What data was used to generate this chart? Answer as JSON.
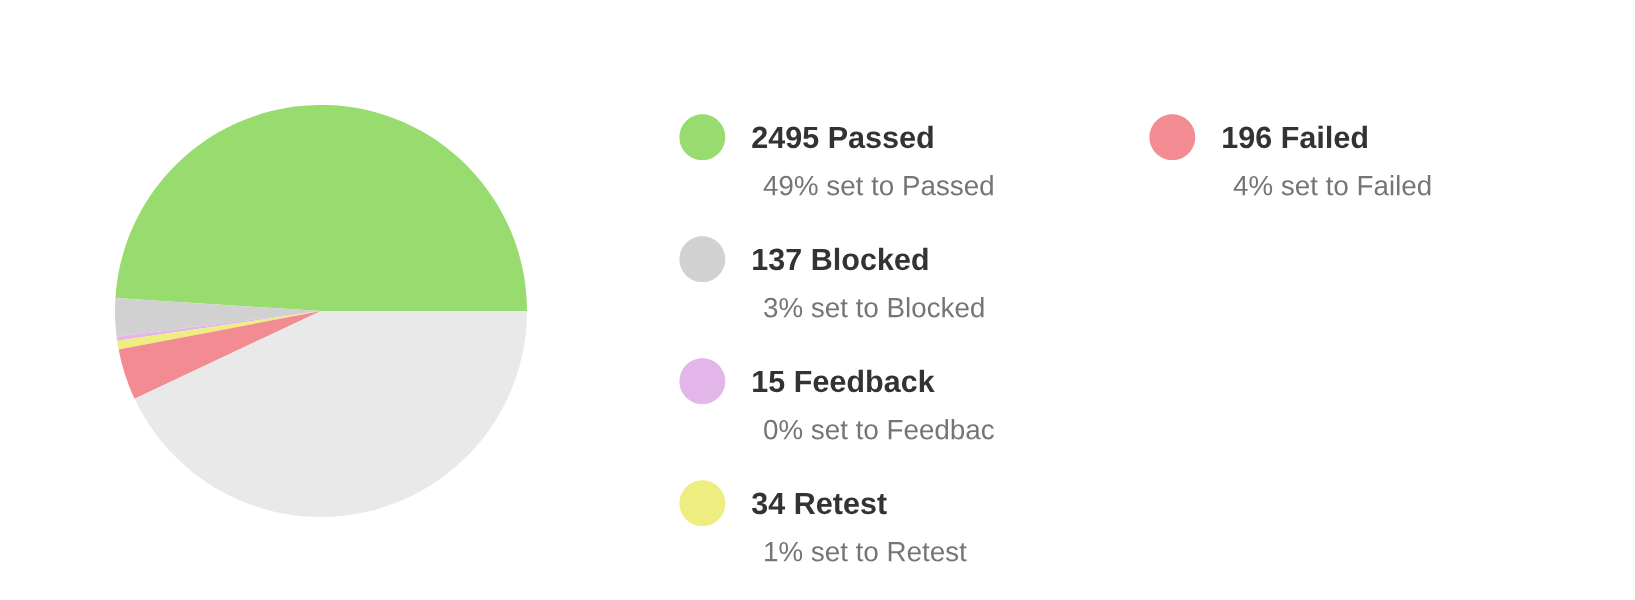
{
  "chart_data": {
    "type": "pie",
    "categories": [
      "2495 Passed",
      "137 Blocked",
      "15 Feedback",
      "34 Retest",
      "196 Failed",
      null
    ],
    "values": [
      49,
      3,
      0.3,
      0.7,
      4,
      43
    ],
    "colors": [
      "#98db6e",
      "#d1d1d1",
      "#e2b6e9",
      "#eded80",
      "#f28b92",
      "#e9e9e9"
    ],
    "annotations": [
      "49% set to Passed",
      "3% set to Blocked",
      "0% set to Feedbac",
      "1% set to Retest",
      "4% set to Failed"
    ],
    "legend": "right"
  }
}
